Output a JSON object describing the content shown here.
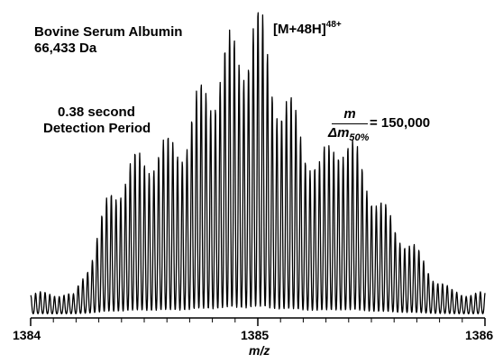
{
  "annotations": {
    "protein_name": "Bovine Serum Albumin",
    "mass": "66,433 Da",
    "ion_base": "[M+48H]",
    "ion_charge": "48+",
    "duration_line1": "0.38 second",
    "duration_line2": "Detection Period",
    "resolution_numerator": "m",
    "resolution_denominator": "Δm",
    "resolution_denominator_sub": "50%",
    "resolution_value": "= 150,000"
  },
  "chart_data": {
    "type": "line",
    "xlabel": "m/z",
    "ylabel": "",
    "title": "",
    "xlim": [
      1384,
      1386
    ],
    "ylim": [
      0,
      1
    ],
    "xticks": [
      1384,
      1385,
      1386
    ],
    "xtick_labels": [
      "1384",
      "1385",
      "1386"
    ],
    "yaxis_visible": false,
    "grid": false,
    "peak_spacing_mz": 0.02083,
    "envelope_center_mz": 1384.98,
    "max_relative_intensity": 1.0,
    "series": [
      {
        "x": [
          1384.02,
          1384.1,
          1384.19,
          1384.27,
          1384.35,
          1384.44,
          1384.52,
          1384.6,
          1384.69,
          1384.77,
          1384.85,
          1384.94,
          1384.98,
          1385.02,
          1385.1,
          1385.19,
          1385.27,
          1385.35,
          1385.44,
          1385.52,
          1385.6,
          1385.69,
          1385.77,
          1385.85,
          1385.94,
          1385.98
        ],
        "values": [
          0.07,
          0.07,
          0.06,
          0.18,
          0.36,
          0.43,
          0.48,
          0.5,
          0.58,
          0.75,
          0.86,
          0.95,
          1.0,
          0.94,
          0.72,
          0.58,
          0.44,
          0.54,
          0.46,
          0.35,
          0.27,
          0.21,
          0.13,
          0.08,
          0.07,
          0.07
        ]
      }
    ]
  }
}
